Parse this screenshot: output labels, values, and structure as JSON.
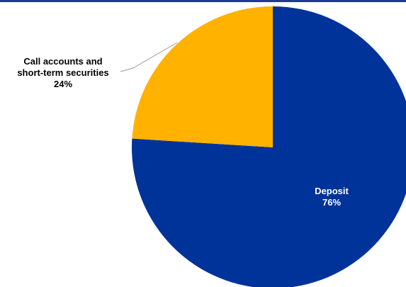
{
  "chart_data": {
    "type": "pie",
    "categories": [
      "Deposit",
      "Call accounts and short-term securities"
    ],
    "values": [
      76,
      24
    ],
    "units": "%",
    "colors": [
      "#00339a",
      "#ffb200"
    ],
    "data_labels": [
      {
        "lines": [
          "Deposit"
        ],
        "value": "76%"
      },
      {
        "lines": [
          "Call accounts and",
          "short-term securities"
        ],
        "value": "24%"
      }
    ],
    "title": "",
    "legend": "none"
  },
  "colors": {
    "top_rule": "#1f3a93",
    "leader_line": "#999999"
  }
}
